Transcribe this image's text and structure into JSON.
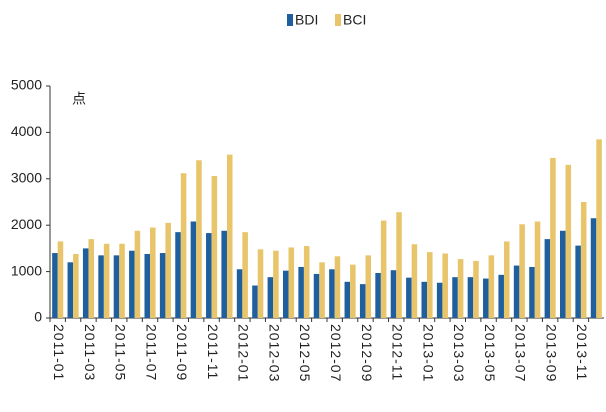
{
  "chart_data": {
    "type": "bar",
    "unit_label": "点",
    "categories": [
      "2011-01",
      null,
      "2011-03",
      null,
      "2011-05",
      null,
      "2011-07",
      null,
      "2011-09",
      null,
      "2011-11",
      null,
      "2012-01",
      null,
      "2012-03",
      null,
      "2012-05",
      null,
      "2012-07",
      null,
      "2012-09",
      null,
      "2012-11",
      null,
      "2013-01",
      null,
      "2013-03",
      null,
      "2013-05",
      null,
      "2013-07",
      null,
      "2013-09",
      null,
      "2013-11",
      null
    ],
    "series": [
      {
        "name": "BDI",
        "color": "#1f5f9e",
        "values": [
          1400,
          1200,
          1500,
          1350,
          1350,
          1450,
          1380,
          1400,
          1850,
          2080,
          1830,
          1880,
          1050,
          700,
          880,
          1020,
          1100,
          950,
          1050,
          780,
          730,
          970,
          1030,
          870,
          780,
          760,
          880,
          880,
          850,
          930,
          1130,
          1100,
          1700,
          1880,
          1560,
          2150
        ]
      },
      {
        "name": "BCI",
        "color": "#e8c56a",
        "values": [
          1650,
          1380,
          1700,
          1600,
          1600,
          1880,
          1950,
          2050,
          3120,
          3400,
          3060,
          3520,
          1850,
          1480,
          1450,
          1520,
          1550,
          1200,
          1330,
          1150,
          1350,
          2100,
          2280,
          1590,
          1420,
          1390,
          1270,
          1230,
          1350,
          1650,
          2020,
          2080,
          3450,
          3300,
          2500,
          3850
        ]
      }
    ],
    "ylim": [
      0,
      5000
    ],
    "yticks": [
      0,
      1000,
      2000,
      3000,
      4000,
      5000
    ],
    "legend": "top"
  }
}
